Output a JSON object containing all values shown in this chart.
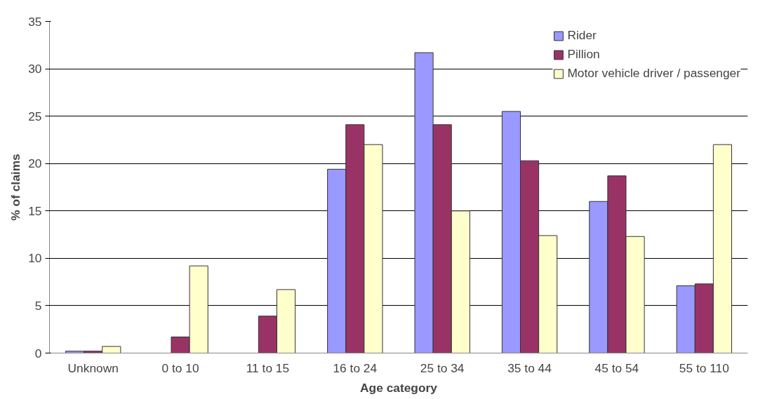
{
  "chart_data": {
    "type": "bar",
    "xlabel": "Age category",
    "ylabel": "% of claims",
    "categories": [
      "Unknown",
      "0 to 10",
      "11 to 15",
      "16 to 24",
      "25 to 34",
      "35 to 44",
      "45 to 54",
      "55 to 110"
    ],
    "series": [
      {
        "name": "Rider",
        "color": "#9999ff",
        "values": [
          0.2,
          null,
          null,
          19.4,
          31.7,
          25.5,
          16.0,
          7.1
        ]
      },
      {
        "name": "Pillion",
        "color": "#993366",
        "values": [
          0.2,
          1.7,
          3.9,
          24.1,
          24.1,
          20.3,
          18.7,
          7.3
        ]
      },
      {
        "name": "Motor vehicle driver / passenger",
        "color": "#ffffcc",
        "values": [
          0.7,
          9.2,
          6.7,
          22.0,
          15.0,
          12.4,
          12.3,
          22.0
        ]
      }
    ],
    "ylim": [
      0,
      35
    ],
    "yticks": [
      0,
      5,
      10,
      15,
      20,
      25,
      30,
      35
    ],
    "grid": "y",
    "legend": "top right"
  }
}
